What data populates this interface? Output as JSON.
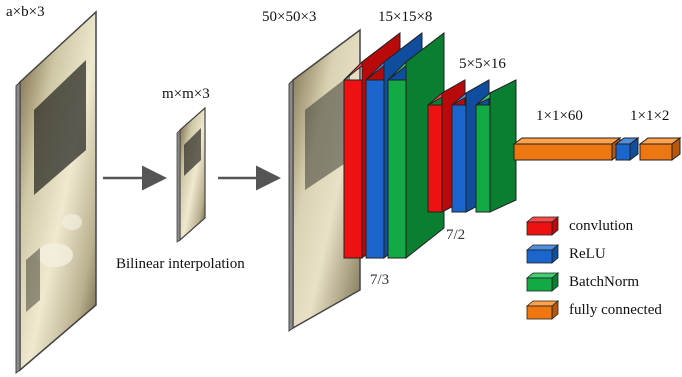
{
  "labels": {
    "input_size": "a×b×3",
    "resized_size": "m×m×3",
    "resize_method": "Bilinear interpolation",
    "net_input_size": "50×50×3",
    "conv1_size": "15×15×8",
    "conv1_kernel_stride": "7/3",
    "conv2_size": "5×5×16",
    "conv2_kernel_stride": "7/2",
    "fc1_size": "1×1×60",
    "fc2_size": "1×1×2"
  },
  "legend": [
    {
      "label": "convlution",
      "color": "#ee1111"
    },
    {
      "label": "ReLU",
      "color": "#1a66cc"
    },
    {
      "label": "BatchNorm",
      "color": "#11aa44"
    },
    {
      "label": "fully connected",
      "color": "#ee7711"
    }
  ],
  "colors": {
    "convolution": "#ee1111",
    "relu": "#1a66cc",
    "batchnorm": "#11aa44",
    "fully_connected": "#ee7711",
    "arrow": "#555555"
  },
  "images": {
    "input": "car-photo-icon",
    "resized": "car-photo-small-icon",
    "net_input": "car-photo-blurred-icon"
  }
}
